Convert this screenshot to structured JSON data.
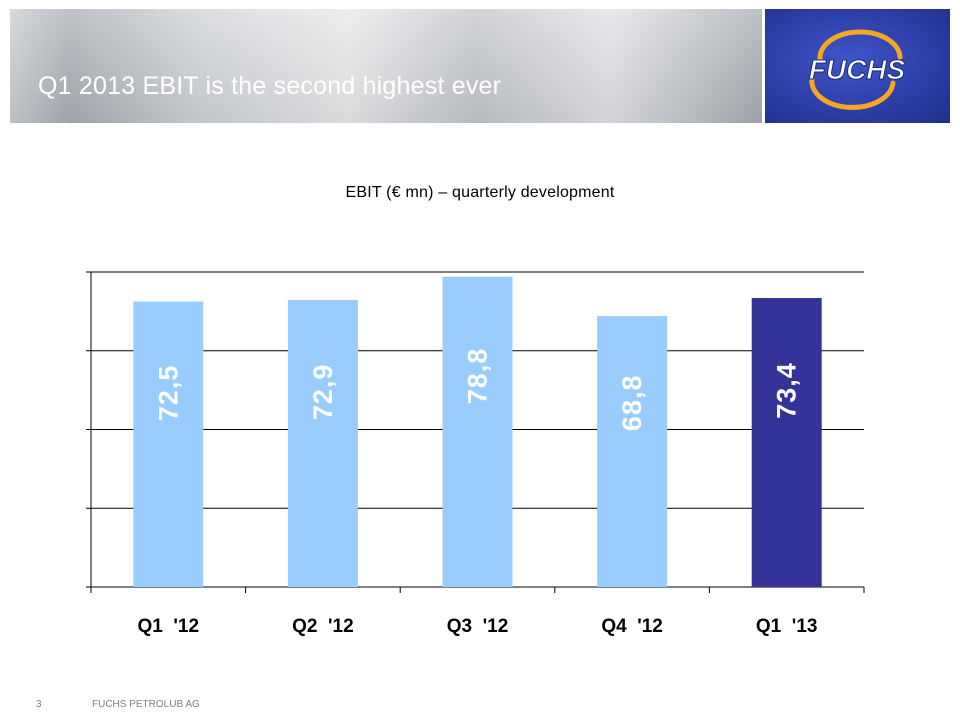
{
  "slide": {
    "title": "Q1 2013 EBIT is the second highest ever",
    "chart_heading": "EBIT (€ mn) – quarterly development",
    "footer_page": "3",
    "footer_company": "FUCHS PETROLUB AG"
  },
  "logo": {
    "icon": "fuchs-logo-icon",
    "text": "FUCHS",
    "bg_color": "#2c3fa8",
    "ring_color": "#f5a623"
  },
  "colors": {
    "bar_default": "#99ccff",
    "bar_highlight": "#333399",
    "label_on_light": "#ffffff",
    "label_on_dark": "#ffffff"
  },
  "chart_data": {
    "type": "bar",
    "title": "EBIT (€ mn) – quarterly development",
    "categories": [
      "Q1  '12",
      "Q2  '12",
      "Q3  '12",
      "Q4  '12",
      "Q1  '13"
    ],
    "values": [
      72.5,
      72.9,
      78.8,
      68.8,
      73.4
    ],
    "data_labels": [
      "72,5",
      "72,9",
      "78,8",
      "68,8",
      "73,4"
    ],
    "highlight_index": 4,
    "ylim": [
      0,
      80
    ],
    "y_ticks": [
      0,
      20,
      40,
      60,
      80
    ],
    "grid": true,
    "legend": "none",
    "xlabel": "",
    "ylabel": ""
  }
}
